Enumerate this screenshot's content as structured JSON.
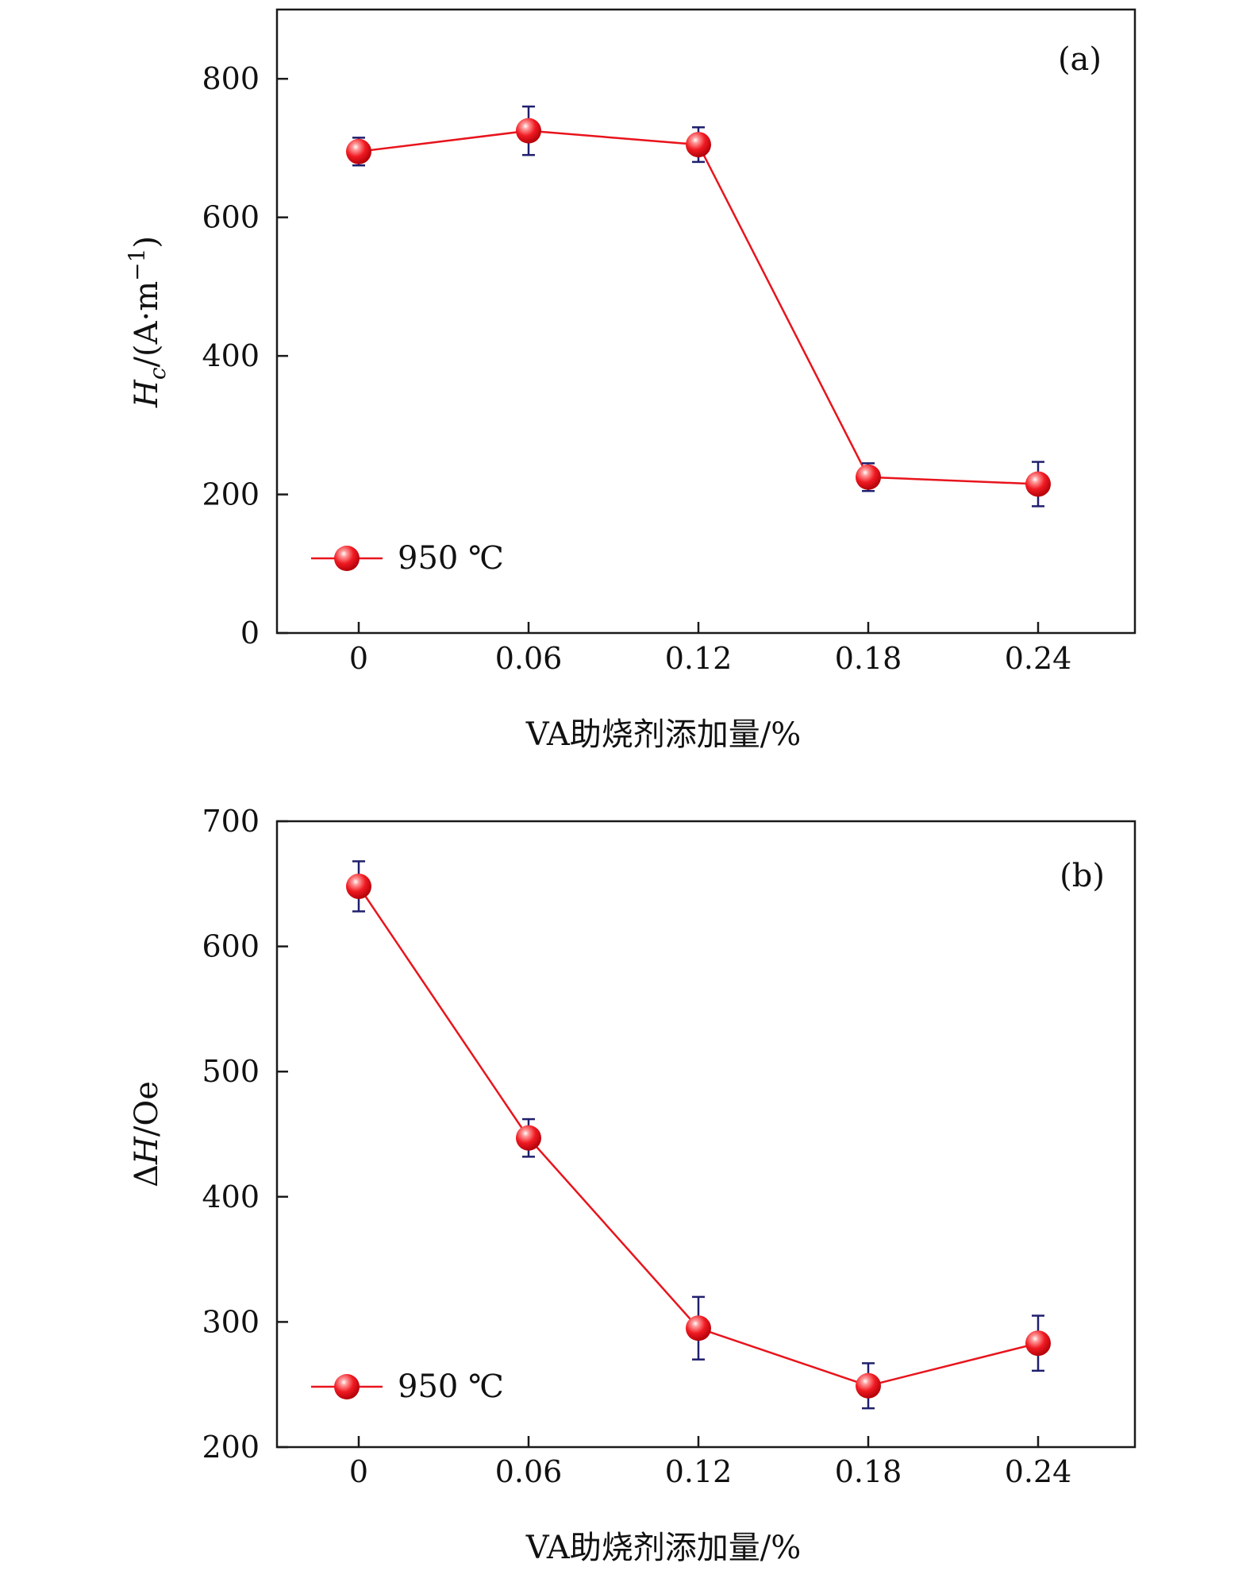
{
  "colors": {
    "series": "#e8141c",
    "error_bar": "#1f1f6e",
    "axis": "#1a1a1a"
  },
  "chart_data": [
    {
      "type": "line",
      "panel_label": "(a)",
      "categories": [
        "0",
        "0.06",
        "0.12",
        "0.18",
        "0.24"
      ],
      "series": [
        {
          "name": "950 ℃",
          "values": [
            695,
            725,
            705,
            225,
            215
          ],
          "errors": [
            20,
            35,
            25,
            20,
            32
          ]
        }
      ],
      "xlabel": "VA助烧剂添加量/%",
      "ylabel": {
        "main": "H",
        "sub": "c",
        "unit": "/(A·m",
        "sup": "−1",
        "close": ")"
      },
      "ylim": [
        0,
        900
      ],
      "yticks": [
        0,
        200,
        400,
        600,
        800
      ],
      "legend": {
        "label": "950 ℃",
        "position": "bottom-left"
      }
    },
    {
      "type": "line",
      "panel_label": "(b)",
      "categories": [
        "0",
        "0.06",
        "0.12",
        "0.18",
        "0.24"
      ],
      "series": [
        {
          "name": "950 ℃",
          "values": [
            648,
            447,
            295,
            249,
            283
          ],
          "errors": [
            20,
            15,
            25,
            18,
            22
          ]
        }
      ],
      "xlabel": "VA助烧剂添加量/%",
      "ylabel": {
        "prefix": "Δ",
        "main": "H",
        "unit": "/Oe"
      },
      "ylim": [
        200,
        700
      ],
      "yticks": [
        200,
        300,
        400,
        500,
        600,
        700
      ],
      "legend": {
        "label": "950 ℃",
        "position": "bottom-left"
      }
    }
  ]
}
